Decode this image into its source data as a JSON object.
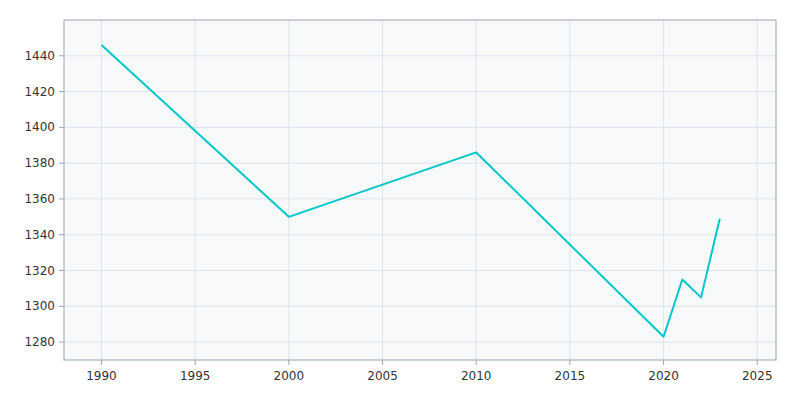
{
  "chart_data": {
    "type": "line",
    "x": [
      1990,
      2000,
      2010,
      2020,
      2021,
      2022,
      2023
    ],
    "values": [
      1446,
      1350,
      1386,
      1283,
      1315,
      1305,
      1349
    ],
    "color": "#00C8C8",
    "xlim": [
      1988,
      2026
    ],
    "ylim": [
      1270,
      1460
    ],
    "xticks": [
      1990,
      1995,
      2000,
      2005,
      2010,
      2015,
      2020,
      2025
    ],
    "yticks": [
      1280,
      1300,
      1320,
      1340,
      1360,
      1380,
      1400,
      1420,
      1440
    ],
    "grid": true
  }
}
